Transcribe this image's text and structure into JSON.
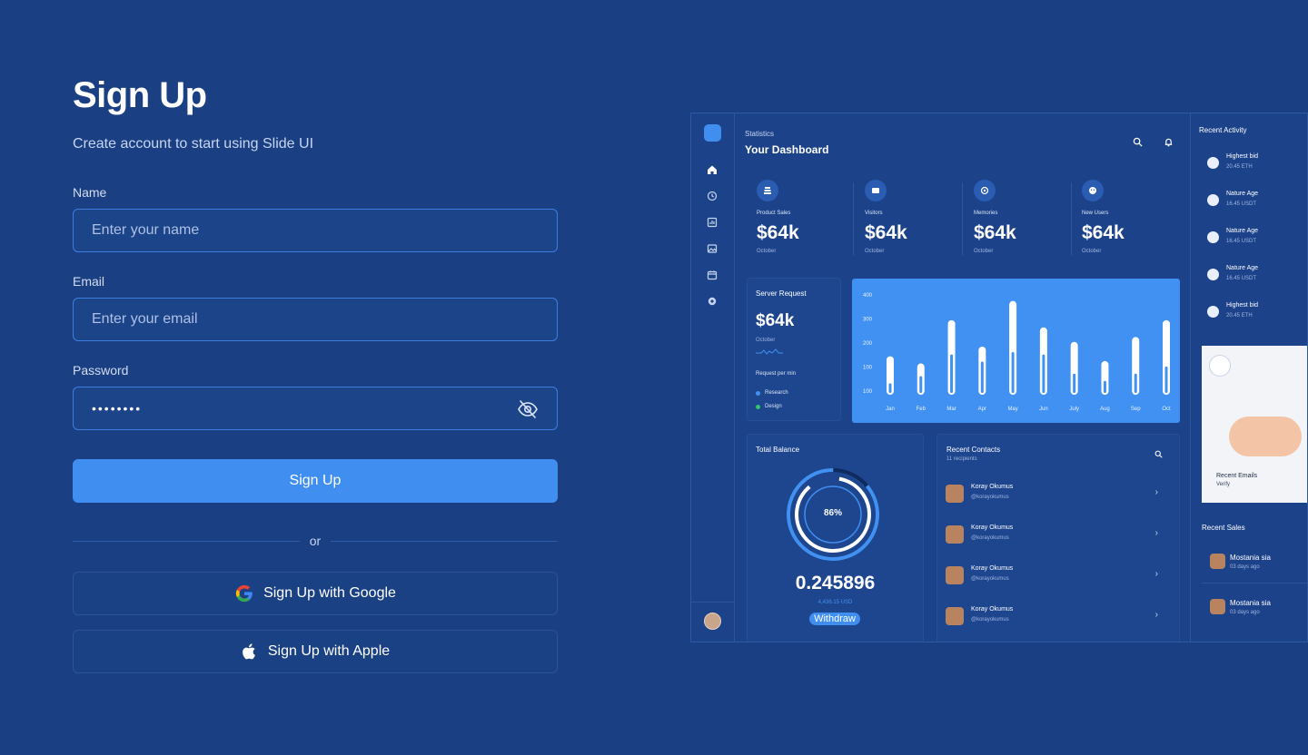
{
  "form": {
    "title": "Sign Up",
    "subtitle": "Create account to start using Slide UI",
    "name_label": "Name",
    "name_placeholder": "Enter your name",
    "email_label": "Email",
    "email_placeholder": "Enter your email",
    "password_label": "Password",
    "password_value": "••••••••",
    "submit_label": "Sign Up",
    "divider_text": "or",
    "google_label": "Sign Up with Google",
    "apple_label": "Sign Up with Apple"
  },
  "dashboard": {
    "header_small": "Statistics",
    "header_title": "Your Dashboard",
    "stats": [
      {
        "label": "Product Sales",
        "value": "$64k",
        "period": "October"
      },
      {
        "label": "Visitors",
        "value": "$64k",
        "period": "October"
      },
      {
        "label": "Memories",
        "value": "$64k",
        "period": "October"
      },
      {
        "label": "New Users",
        "value": "$64k",
        "period": "October"
      }
    ],
    "server": {
      "title": "Server Request",
      "value": "$64k",
      "period": "October",
      "caption": "Request per min",
      "legend": [
        "Research",
        "Design"
      ]
    },
    "balance": {
      "title": "Total Balance",
      "percent": "86%",
      "value": "0.245896",
      "usd": "4,436.15 USD",
      "action": "Withdraw"
    },
    "contacts": {
      "title": "Recent Contacts",
      "subtitle": "11 recipients",
      "items": [
        {
          "name": "Koray Okumus",
          "handle": "@korayokumus"
        },
        {
          "name": "Koray Okumus",
          "handle": "@korayokumus"
        },
        {
          "name": "Koray Okumus",
          "handle": "@korayokumus"
        },
        {
          "name": "Koray Okumus",
          "handle": "@korayokumus"
        }
      ]
    },
    "activity": {
      "title": "Recent Activity",
      "items": [
        {
          "name": "Highest bid",
          "value": "20.45 ETH"
        },
        {
          "name": "Nature Age",
          "value": "16.45 USDT"
        },
        {
          "name": "Nature Age",
          "value": "16.45 USDT"
        },
        {
          "name": "Nature Age",
          "value": "16.45 USDT"
        },
        {
          "name": "Highest bid",
          "value": "20.45 ETH"
        }
      ]
    },
    "emails": {
      "title": "Recent Emails",
      "subtitle": "Verify"
    },
    "sales": {
      "title": "Recent Sales",
      "items": [
        {
          "name": "Mostania sia",
          "time": "03 days ago"
        },
        {
          "name": "Mostania sia",
          "time": "03 days ago"
        }
      ]
    }
  },
  "chart_data": {
    "type": "bar",
    "categories": [
      "Jan",
      "Feb",
      "Mar",
      "Apr",
      "May",
      "Jun",
      "July",
      "Aug",
      "Sep",
      "Oct"
    ],
    "series": [
      {
        "values": [
          160,
          130,
          310,
          200,
          390,
          280,
          220,
          140,
          240,
          310
        ]
      },
      {
        "values": [
          40,
          70,
          160,
          130,
          170,
          160,
          80,
          50,
          80,
          110
        ]
      }
    ],
    "y_ticks": [
      "400",
      "300",
      "200",
      "100",
      "100"
    ],
    "ylim": [
      0,
      400
    ]
  },
  "colors": {
    "background": "#1a3f82",
    "accent": "#3f8ef0",
    "chart_bg": "#4191f2"
  }
}
